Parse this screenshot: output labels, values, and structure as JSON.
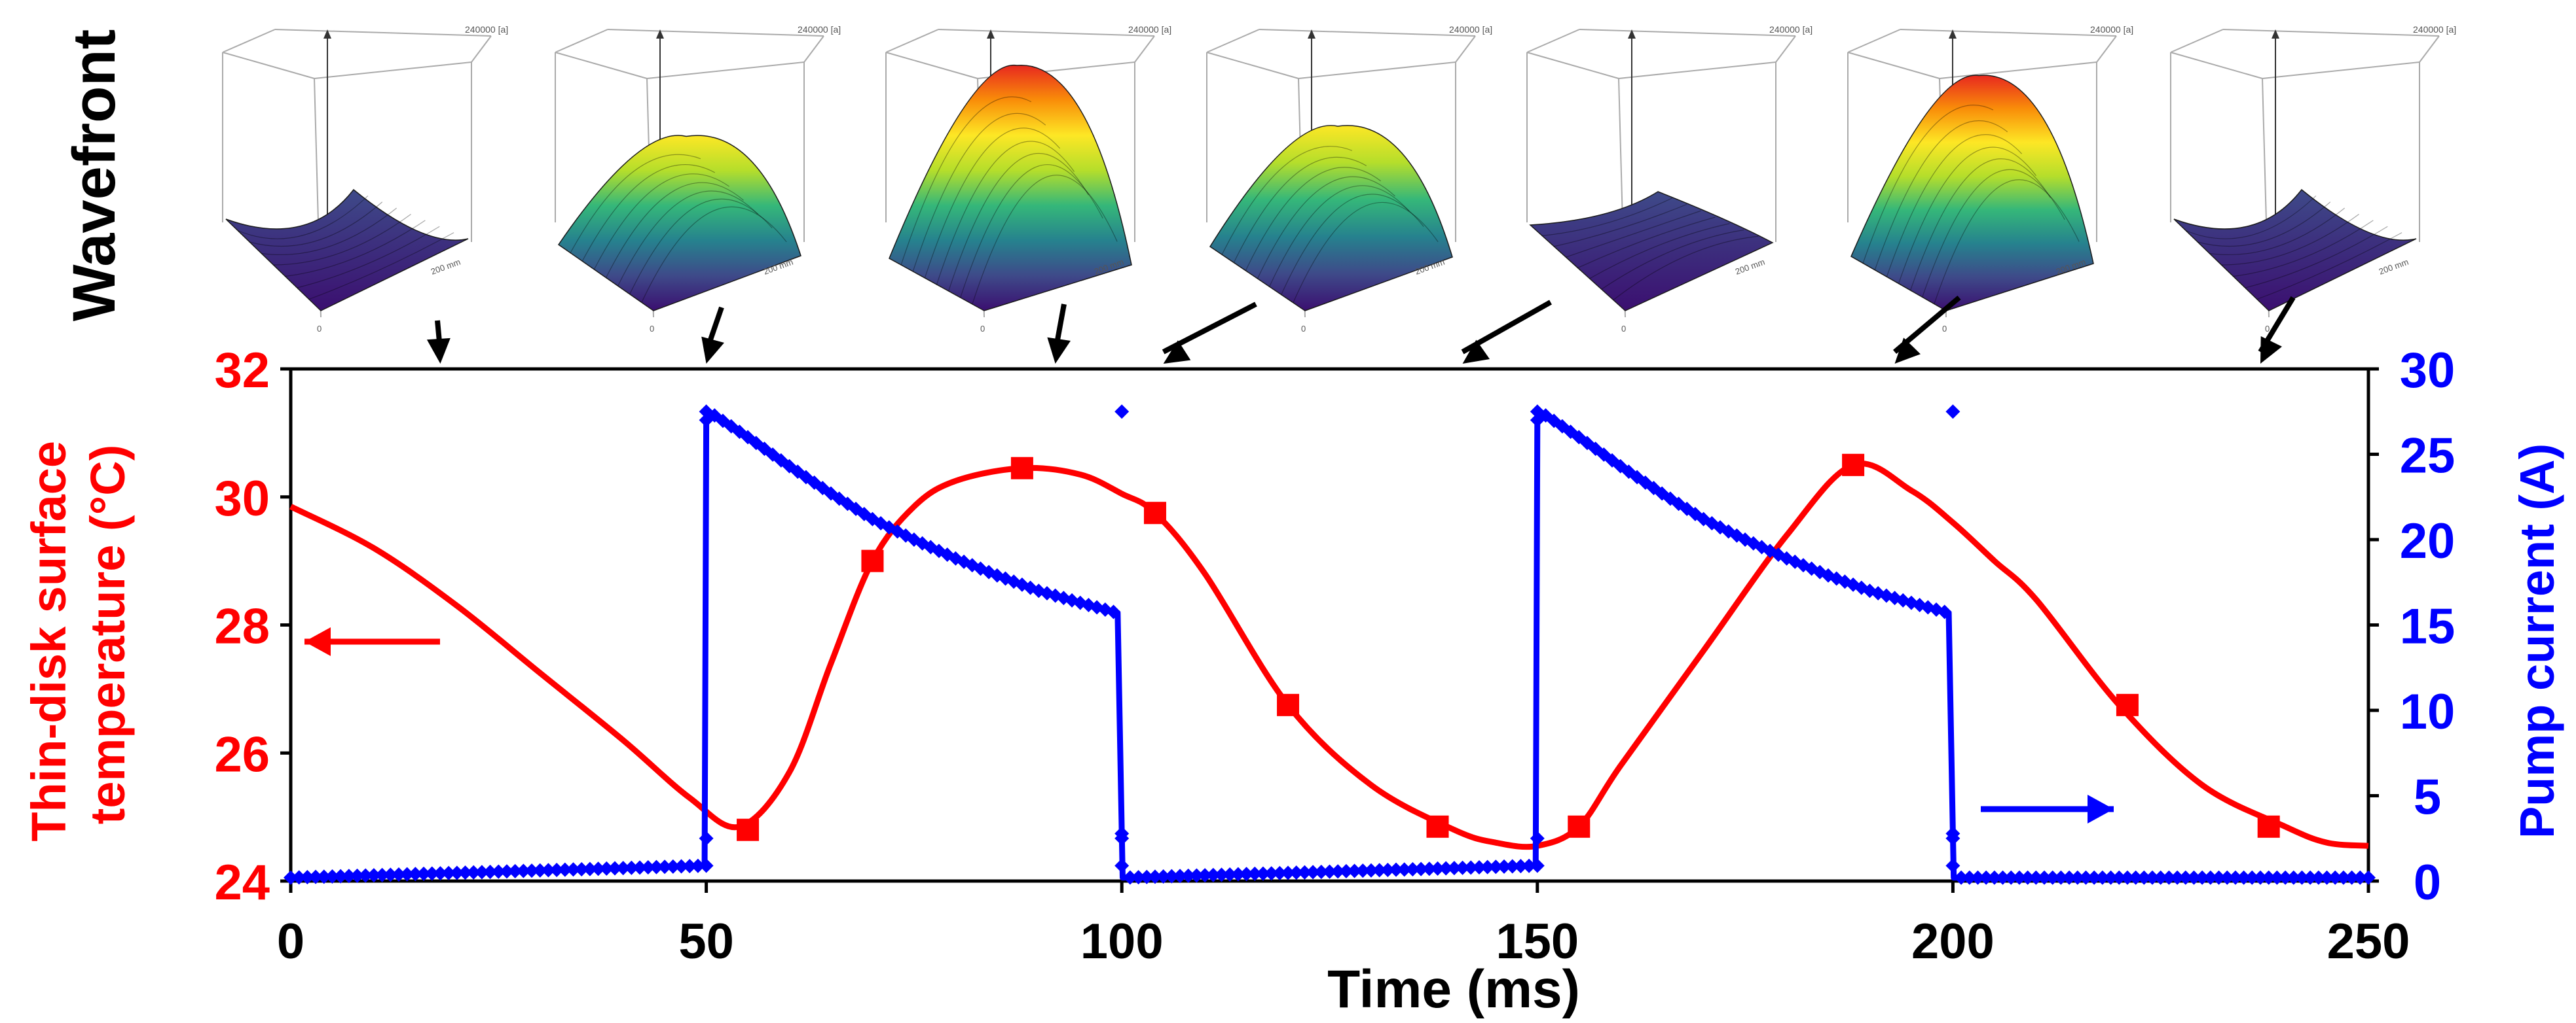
{
  "wavefront_label": "Wavefront",
  "insets": [
    {
      "amplitude": 0.0,
      "scale_label": "240000 [a]",
      "axis_label": "200 mm",
      "axis_label_2": "0"
    },
    {
      "amplitude": 0.65,
      "scale_label": "240000 [a]",
      "axis_label": "200 mm",
      "axis_label_2": "0"
    },
    {
      "amplitude": 1.0,
      "scale_label": "240000 [a]",
      "axis_label": "200 mm",
      "axis_label_2": "0"
    },
    {
      "amplitude": 0.7,
      "scale_label": "240000 [a]",
      "axis_label": "200 mm",
      "axis_label_2": "0"
    },
    {
      "amplitude": 0.15,
      "scale_label": "240000 [a]",
      "axis_label": "200 mm",
      "axis_label_2": "0"
    },
    {
      "amplitude": 0.95,
      "scale_label": "240000 [a]",
      "axis_label": "200 mm",
      "axis_label_2": "0"
    },
    {
      "amplitude": 0.0,
      "scale_label": "240000 [a]",
      "axis_label": "200 mm",
      "axis_label_2": "0"
    }
  ],
  "colors": {
    "temperature": "#ff0000",
    "current": "#0000ff",
    "axis": "#000000",
    "arrow": "#000000",
    "colormap": [
      "#3b0f70",
      "#3e4a89",
      "#26828e",
      "#35b779",
      "#b5de2b",
      "#fde725",
      "#f98e09",
      "#e8281f"
    ]
  },
  "chart_data": {
    "type": "line",
    "title": "",
    "xlabel": "Time (ms)",
    "ylabel_left": "Thin-disk surface temperature (°C)",
    "ylabel_left_lines": [
      "Thin-disk surface",
      "temperature (°C)"
    ],
    "ylabel_right": "Pump current (A)",
    "xlim": [
      0,
      250
    ],
    "ylim_left": [
      24,
      32
    ],
    "ylim_right": [
      0,
      30
    ],
    "xticks": [
      "0",
      "50",
      "100",
      "150",
      "200",
      "250"
    ],
    "yticks_left": [
      "24",
      "26",
      "28",
      "30",
      "32"
    ],
    "yticks_right": [
      "0",
      "5",
      "10",
      "15",
      "20",
      "25",
      "30"
    ],
    "grid": false,
    "wavefront_times": [
      18,
      50,
      92,
      105,
      141,
      193,
      237
    ],
    "series": [
      {
        "axis": "left",
        "curve_x": [
          0,
          10,
          20,
          30,
          40,
          48,
          54,
          60,
          65,
          70,
          75,
          80,
          88,
          95,
          100,
          104,
          110,
          120,
          130,
          140,
          145,
          150,
          155,
          160,
          170,
          180,
          188,
          195,
          200,
          205,
          210,
          220,
          230,
          240,
          245,
          250
        ],
        "curve_y": [
          29.85,
          29.2,
          28.3,
          27.25,
          26.2,
          25.3,
          24.85,
          25.7,
          27.4,
          29.0,
          29.85,
          30.25,
          30.45,
          30.35,
          30.05,
          29.75,
          28.8,
          26.75,
          25.5,
          24.8,
          24.6,
          24.55,
          24.85,
          25.8,
          27.6,
          29.4,
          30.5,
          30.1,
          29.6,
          29.0,
          28.4,
          26.75,
          25.5,
          24.85,
          24.6,
          24.55
        ],
        "marker_x": [
          55,
          70,
          88,
          104,
          120,
          138,
          155,
          188,
          221,
          238
        ],
        "marker_y": [
          24.8,
          29.0,
          30.45,
          29.75,
          26.75,
          24.85,
          24.85,
          30.5,
          26.75,
          24.85
        ]
      },
      {
        "axis": "right",
        "x": [
          0,
          49.8,
          50,
          50.3,
          55,
          60,
          65,
          70,
          75,
          80,
          85,
          90,
          95,
          99.5,
          100.1,
          149.8,
          150,
          150.3,
          155,
          160,
          165,
          170,
          175,
          180,
          185,
          190,
          195,
          199.5,
          200.1,
          250
        ],
        "y": [
          0.2,
          0.9,
          27.0,
          27.5,
          26.0,
          24.3,
          22.7,
          21.2,
          20.0,
          18.9,
          17.9,
          17.0,
          16.3,
          15.7,
          0.2,
          0.9,
          27.0,
          27.5,
          26.0,
          24.3,
          22.7,
          21.2,
          20.0,
          18.9,
          17.9,
          17.0,
          16.3,
          15.7,
          0.2,
          0.2
        ]
      }
    ]
  }
}
